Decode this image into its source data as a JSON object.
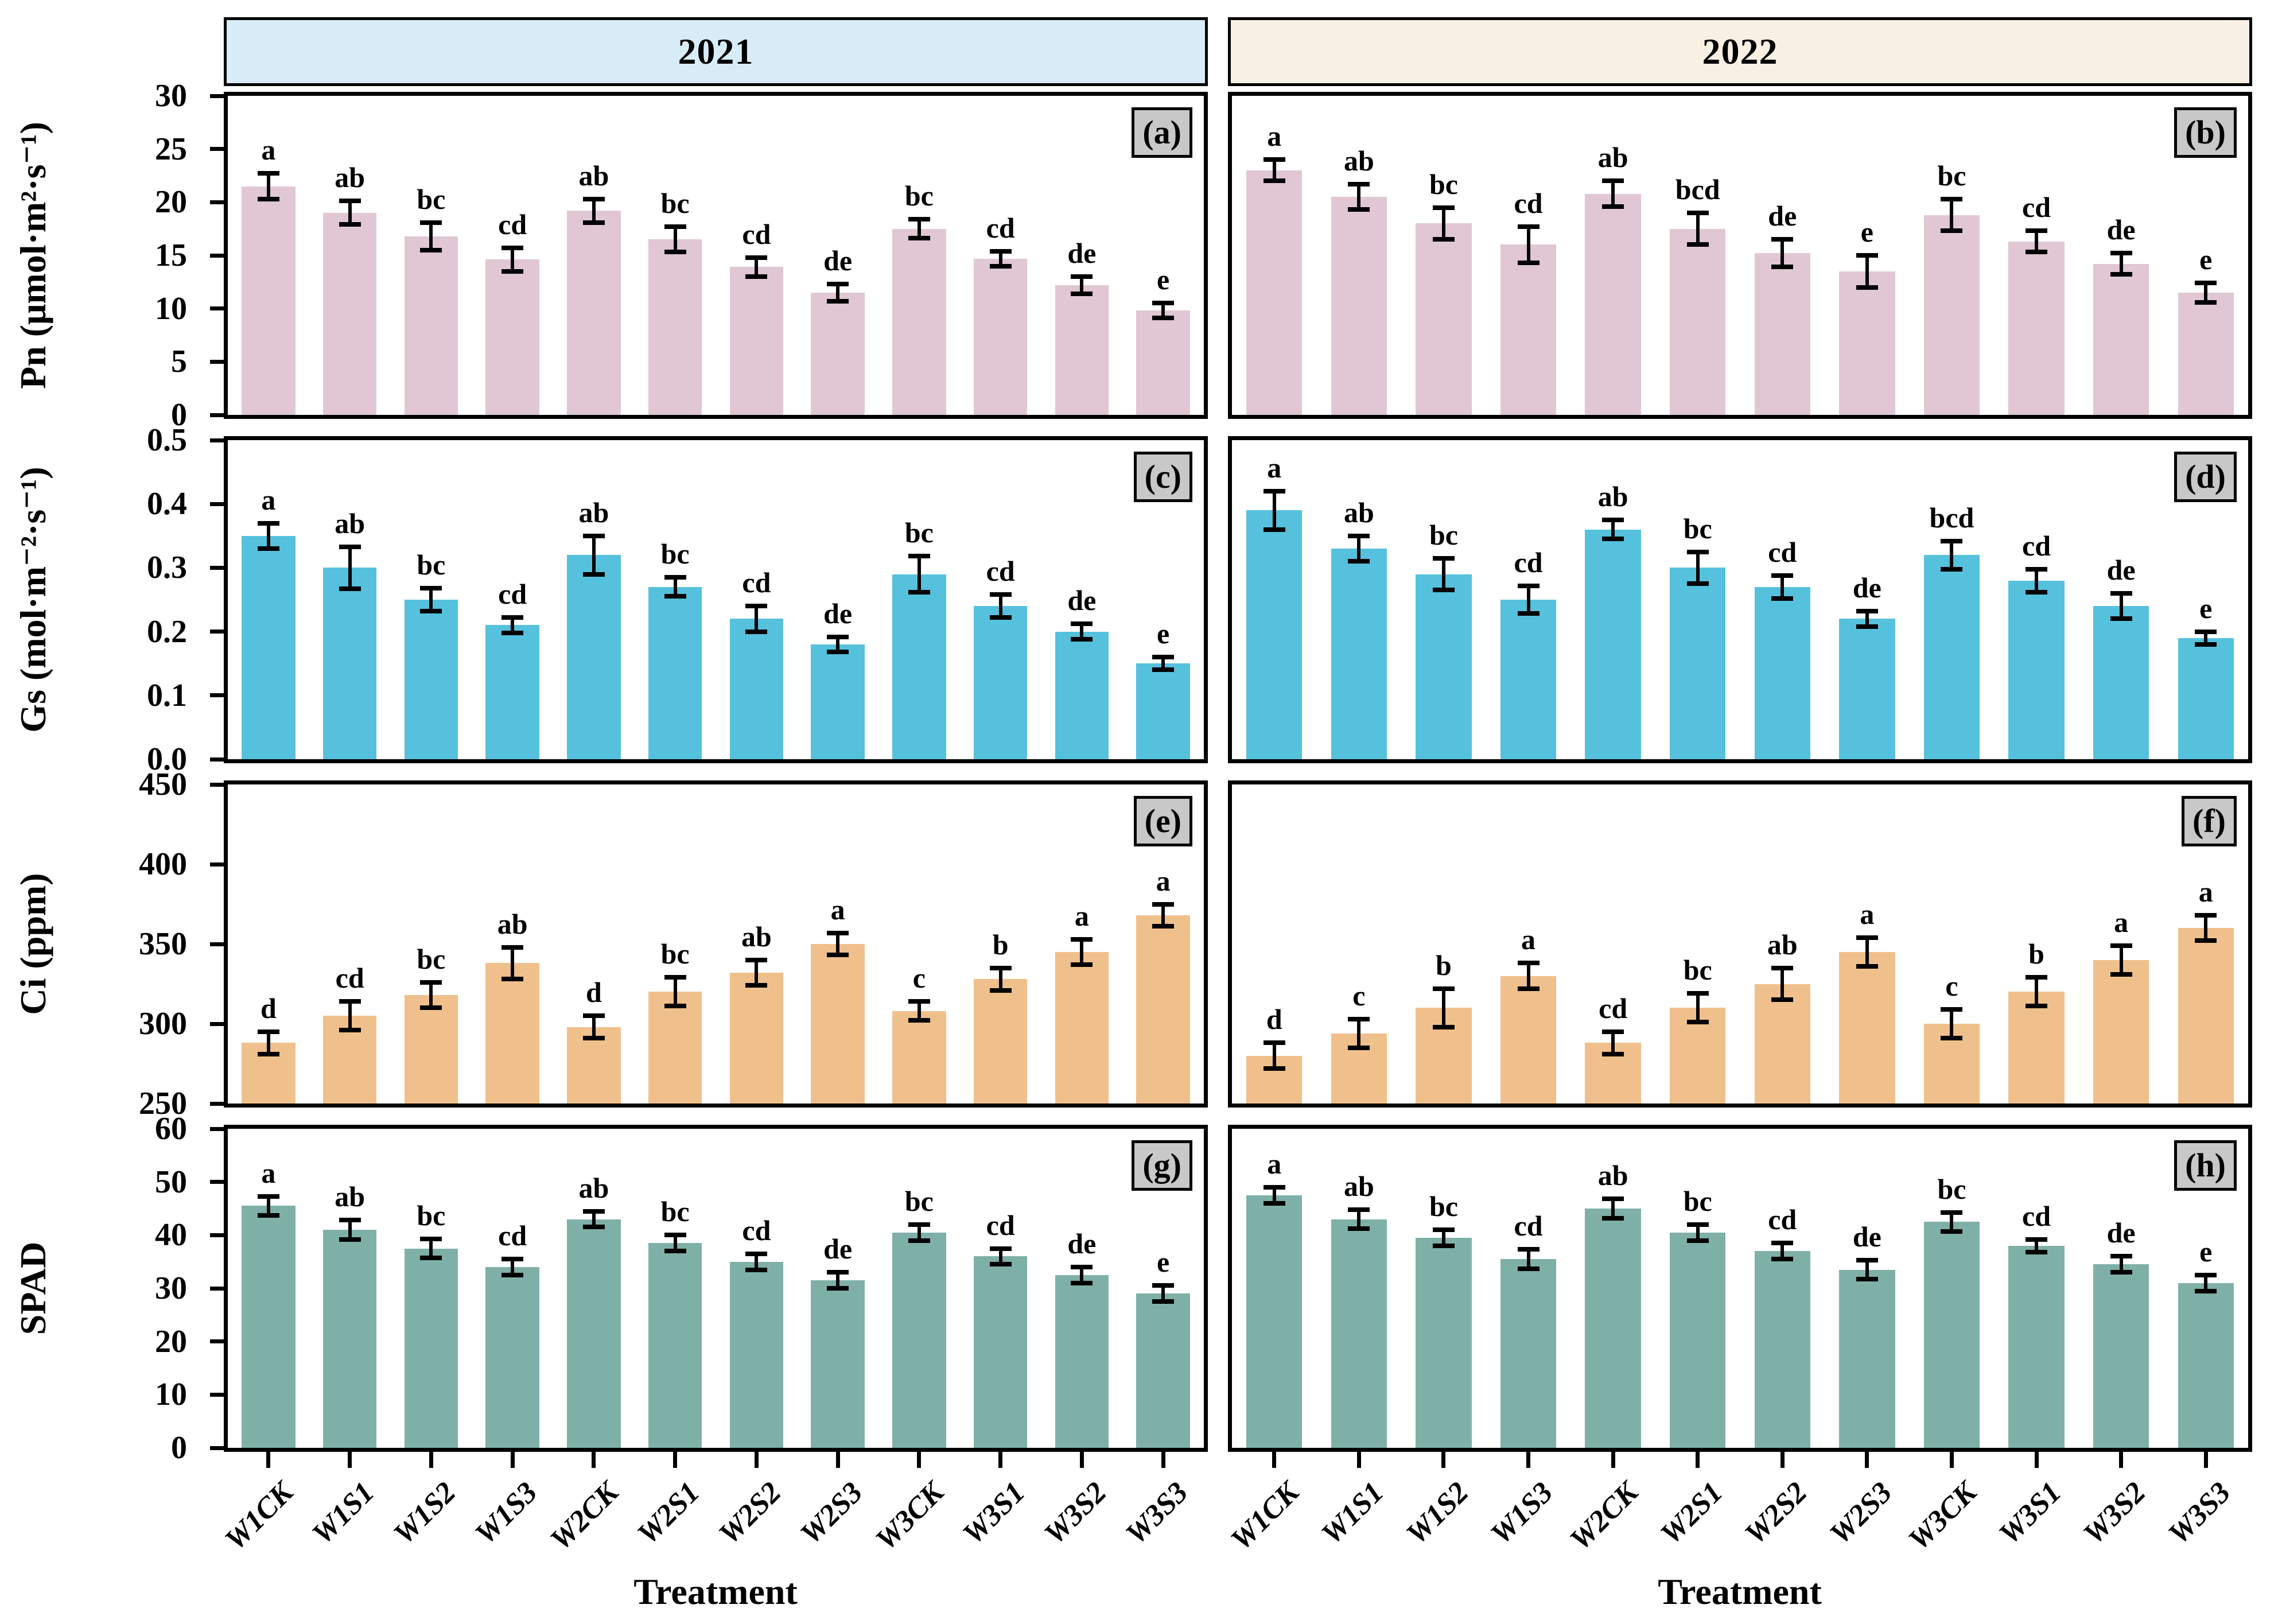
{
  "figure": {
    "years": [
      "2021",
      "2022"
    ],
    "xlabel": "Treatment",
    "header_colors": {
      "2021": "#d8ecf7",
      "2022": "#f8f1e3"
    },
    "panel_label_bg": "#c8c8c8",
    "categories": [
      "W1CK",
      "W1S1",
      "W1S2",
      "W1S3",
      "W2CK",
      "W2S1",
      "W2S2",
      "W2S3",
      "W3CK",
      "W3S1",
      "W3S2",
      "W3S3"
    ]
  },
  "chart_data": [
    {
      "type": "bar",
      "panel": "(a)",
      "year": "2021",
      "ylabel": "Pn (μmol·m²·s⁻¹)",
      "ylim": [
        0,
        30
      ],
      "yticks": [
        "0",
        "5",
        "10",
        "15",
        "20",
        "25",
        "30"
      ],
      "bar_color": "#e0c7d3",
      "categories": [
        "W1CK",
        "W1S1",
        "W1S2",
        "W1S3",
        "W2CK",
        "W2S1",
        "W2S2",
        "W2S3",
        "W3CK",
        "W3S1",
        "W3S2",
        "W3S3"
      ],
      "values": [
        21.5,
        19.0,
        16.8,
        14.6,
        19.2,
        16.5,
        13.9,
        11.5,
        17.5,
        14.7,
        12.2,
        9.8
      ],
      "errors": [
        1.2,
        1.1,
        1.3,
        1.1,
        1.1,
        1.2,
        0.9,
        0.8,
        0.9,
        0.7,
        0.8,
        0.7
      ],
      "sig_letters": [
        "a",
        "ab",
        "bc",
        "cd",
        "ab",
        "bc",
        "cd",
        "de",
        "bc",
        "cd",
        "de",
        "e"
      ]
    },
    {
      "type": "bar",
      "panel": "(b)",
      "year": "2022",
      "ylabel": "Pn (μmol·m²·s⁻¹)",
      "ylim": [
        0,
        30
      ],
      "yticks": [
        "0",
        "5",
        "10",
        "15",
        "20",
        "25",
        "30"
      ],
      "bar_color": "#e0c7d3",
      "categories": [
        "W1CK",
        "W1S1",
        "W1S2",
        "W1S3",
        "W2CK",
        "W2S1",
        "W2S2",
        "W2S3",
        "W3CK",
        "W3S1",
        "W3S2",
        "W3S3"
      ],
      "values": [
        23.0,
        20.5,
        18.0,
        16.0,
        20.8,
        17.5,
        15.2,
        13.5,
        18.8,
        16.3,
        14.2,
        11.5
      ],
      "errors": [
        1.0,
        1.2,
        1.5,
        1.7,
        1.2,
        1.5,
        1.3,
        1.5,
        1.5,
        1.0,
        1.0,
        0.9
      ],
      "sig_letters": [
        "a",
        "ab",
        "bc",
        "cd",
        "ab",
        "bcd",
        "de",
        "e",
        "bc",
        "cd",
        "de",
        "e"
      ]
    },
    {
      "type": "bar",
      "panel": "(c)",
      "year": "2021",
      "ylabel": "Gs (mol·m⁻²·s⁻¹)",
      "ylim": [
        0,
        0.5
      ],
      "yticks": [
        "0.0",
        "0.1",
        "0.2",
        "0.3",
        "0.4",
        "0.5"
      ],
      "bar_color": "#56c1dd",
      "categories": [
        "W1CK",
        "W1S1",
        "W1S2",
        "W1S3",
        "W2CK",
        "W2S1",
        "W2S2",
        "W2S3",
        "W3CK",
        "W3S1",
        "W3S2",
        "W3S3"
      ],
      "values": [
        0.35,
        0.3,
        0.25,
        0.21,
        0.32,
        0.27,
        0.22,
        0.18,
        0.29,
        0.24,
        0.2,
        0.15
      ],
      "errors": [
        0.02,
        0.033,
        0.018,
        0.012,
        0.03,
        0.015,
        0.02,
        0.012,
        0.028,
        0.018,
        0.012,
        0.01
      ],
      "sig_letters": [
        "a",
        "ab",
        "bc",
        "cd",
        "ab",
        "bc",
        "cd",
        "de",
        "bc",
        "cd",
        "de",
        "e"
      ]
    },
    {
      "type": "bar",
      "panel": "(d)",
      "year": "2022",
      "ylabel": "Gs (mol·m⁻²·s⁻¹)",
      "ylim": [
        0,
        0.5
      ],
      "yticks": [
        "0.0",
        "0.1",
        "0.2",
        "0.3",
        "0.4",
        "0.5"
      ],
      "bar_color": "#56c1dd",
      "categories": [
        "W1CK",
        "W1S1",
        "W1S2",
        "W1S3",
        "W2CK",
        "W2S1",
        "W2S2",
        "W2S3",
        "W3CK",
        "W3S1",
        "W3S2",
        "W3S3"
      ],
      "values": [
        0.39,
        0.33,
        0.29,
        0.25,
        0.36,
        0.3,
        0.27,
        0.22,
        0.32,
        0.28,
        0.24,
        0.19
      ],
      "errors": [
        0.03,
        0.02,
        0.025,
        0.022,
        0.015,
        0.025,
        0.018,
        0.012,
        0.022,
        0.018,
        0.02,
        0.01
      ],
      "sig_letters": [
        "a",
        "ab",
        "bc",
        "cd",
        "ab",
        "bc",
        "cd",
        "de",
        "bcd",
        "cd",
        "de",
        "e"
      ]
    },
    {
      "type": "bar",
      "panel": "(e)",
      "year": "2021",
      "ylabel": "Ci (ppm)",
      "ylim": [
        250,
        450
      ],
      "yticks": [
        "250",
        "300",
        "350",
        "400",
        "450"
      ],
      "bar_color": "#f0c08c",
      "categories": [
        "W1CK",
        "W1S1",
        "W1S2",
        "W1S3",
        "W2CK",
        "W2S1",
        "W2S2",
        "W2S3",
        "W3CK",
        "W3S1",
        "W3S2",
        "W3S3"
      ],
      "values": [
        288,
        305,
        318,
        338,
        298,
        320,
        332,
        350,
        308,
        328,
        345,
        368
      ],
      "errors": [
        7,
        9,
        8,
        10,
        7,
        9,
        8,
        7,
        6,
        7,
        8,
        7
      ],
      "sig_letters": [
        "d",
        "cd",
        "bc",
        "ab",
        "d",
        "bc",
        "ab",
        "a",
        "c",
        "b",
        "a",
        "a"
      ]
    },
    {
      "type": "bar",
      "panel": "(f)",
      "year": "2022",
      "ylabel": "Ci (ppm)",
      "ylim": [
        250,
        450
      ],
      "yticks": [
        "250",
        "300",
        "350",
        "400",
        "450"
      ],
      "bar_color": "#f0c08c",
      "categories": [
        "W1CK",
        "W1S1",
        "W1S2",
        "W1S3",
        "W2CK",
        "W2S1",
        "W2S2",
        "W2S3",
        "W3CK",
        "W3S1",
        "W3S2",
        "W3S3"
      ],
      "values": [
        280,
        294,
        310,
        330,
        288,
        310,
        325,
        345,
        300,
        320,
        340,
        360
      ],
      "errors": [
        8,
        9,
        12,
        8,
        7,
        9,
        10,
        9,
        9,
        9,
        9,
        8
      ],
      "sig_letters": [
        "d",
        "c",
        "b",
        "a",
        "cd",
        "bc",
        "ab",
        "a",
        "c",
        "b",
        "a",
        "a"
      ]
    },
    {
      "type": "bar",
      "panel": "(g)",
      "year": "2021",
      "ylabel": "SPAD",
      "ylim": [
        0,
        60
      ],
      "yticks": [
        "0",
        "10",
        "20",
        "30",
        "40",
        "50",
        "60"
      ],
      "bar_color": "#7fb0a8",
      "categories": [
        "W1CK",
        "W1S1",
        "W1S2",
        "W1S3",
        "W2CK",
        "W2S1",
        "W2S2",
        "W2S3",
        "W3CK",
        "W3S1",
        "W3S2",
        "W3S3"
      ],
      "values": [
        45.5,
        41.0,
        37.5,
        34.0,
        43.0,
        38.5,
        35.0,
        31.5,
        40.5,
        36.0,
        32.5,
        29.0
      ],
      "errors": [
        1.8,
        1.8,
        1.8,
        1.5,
        1.5,
        1.5,
        1.5,
        1.5,
        1.5,
        1.5,
        1.5,
        1.5
      ],
      "sig_letters": [
        "a",
        "ab",
        "bc",
        "cd",
        "ab",
        "bc",
        "cd",
        "de",
        "bc",
        "cd",
        "de",
        "e"
      ]
    },
    {
      "type": "bar",
      "panel": "(h)",
      "year": "2022",
      "ylabel": "SPAD",
      "ylim": [
        0,
        60
      ],
      "yticks": [
        "0",
        "10",
        "20",
        "30",
        "40",
        "50",
        "60"
      ],
      "bar_color": "#7fb0a8",
      "categories": [
        "W1CK",
        "W1S1",
        "W1S2",
        "W1S3",
        "W2CK",
        "W2S1",
        "W2S2",
        "W2S3",
        "W3CK",
        "W3S1",
        "W3S2",
        "W3S3"
      ],
      "values": [
        47.5,
        43.0,
        39.5,
        35.5,
        45.0,
        40.5,
        37.0,
        33.5,
        42.5,
        38.0,
        34.5,
        31.0
      ],
      "errors": [
        1.5,
        1.8,
        1.5,
        1.8,
        1.8,
        1.5,
        1.5,
        1.8,
        1.8,
        1.2,
        1.5,
        1.5
      ],
      "sig_letters": [
        "a",
        "ab",
        "bc",
        "cd",
        "ab",
        "bc",
        "cd",
        "de",
        "bc",
        "cd",
        "de",
        "e"
      ]
    }
  ]
}
